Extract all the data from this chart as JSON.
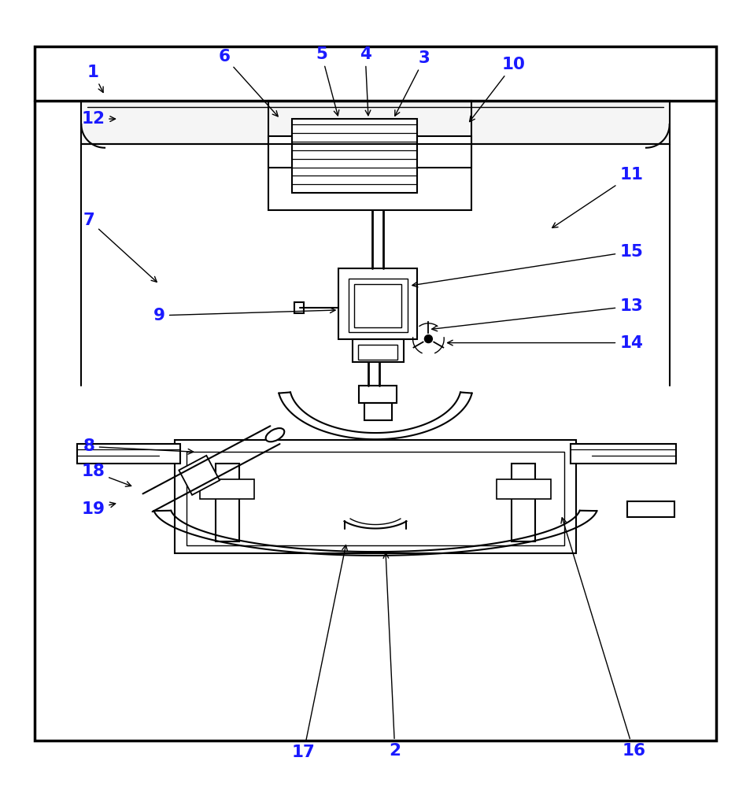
{
  "bg_color": "#ffffff",
  "line_color": "#000000",
  "label_color": "#1a1aff",
  "fig_width": 9.54,
  "fig_height": 10.0
}
